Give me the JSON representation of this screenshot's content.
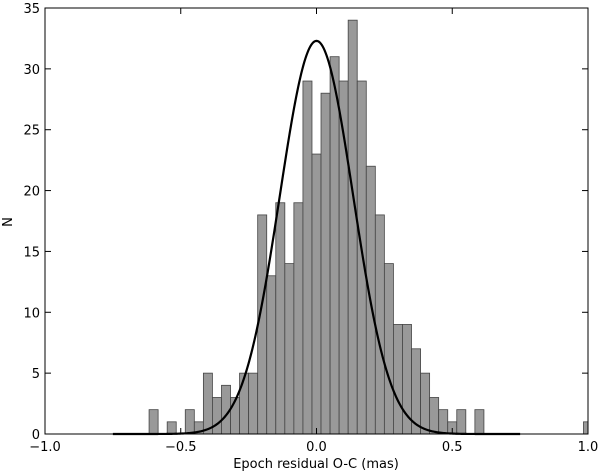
{
  "chart_data": {
    "type": "bar",
    "title": "",
    "xlabel": "Epoch residual O-C (mas)",
    "ylabel": "N",
    "xlim": [
      -1.0,
      1.0
    ],
    "ylim": [
      0,
      35
    ],
    "xticks": [
      "−1.0",
      "−0.5",
      "0.0",
      "0.5",
      "1.0"
    ],
    "xtick_values": [
      -1.0,
      -0.5,
      0.0,
      0.5,
      1.0
    ],
    "yticks": [
      "0",
      "5",
      "10",
      "15",
      "20",
      "25",
      "30",
      "35"
    ],
    "ytick_values": [
      0,
      5,
      10,
      15,
      20,
      25,
      30,
      35
    ],
    "grid": false,
    "bar_color": "#999999",
    "bar_edge_color": "#444444",
    "histogram": {
      "bin_width": 0.0333,
      "bins": [
        {
          "x": -0.6,
          "count": 2
        },
        {
          "x": -0.5333,
          "count": 1
        },
        {
          "x": -0.4667,
          "count": 2
        },
        {
          "x": -0.4333,
          "count": 1
        },
        {
          "x": -0.4,
          "count": 5
        },
        {
          "x": -0.3667,
          "count": 3
        },
        {
          "x": -0.3333,
          "count": 4
        },
        {
          "x": -0.3,
          "count": 3
        },
        {
          "x": -0.2667,
          "count": 5
        },
        {
          "x": -0.2333,
          "count": 5
        },
        {
          "x": -0.2,
          "count": 18
        },
        {
          "x": -0.1667,
          "count": 13
        },
        {
          "x": -0.1333,
          "count": 19
        },
        {
          "x": -0.1,
          "count": 14
        },
        {
          "x": -0.0667,
          "count": 19
        },
        {
          "x": -0.0333,
          "count": 29
        },
        {
          "x": 0.0,
          "count": 23
        },
        {
          "x": 0.0333,
          "count": 28
        },
        {
          "x": 0.0667,
          "count": 31
        },
        {
          "x": 0.1,
          "count": 29
        },
        {
          "x": 0.1333,
          "count": 34
        },
        {
          "x": 0.1667,
          "count": 29
        },
        {
          "x": 0.2,
          "count": 22
        },
        {
          "x": 0.2333,
          "count": 18
        },
        {
          "x": 0.2667,
          "count": 14
        },
        {
          "x": 0.3,
          "count": 9
        },
        {
          "x": 0.3333,
          "count": 9
        },
        {
          "x": 0.3667,
          "count": 7
        },
        {
          "x": 0.4,
          "count": 5
        },
        {
          "x": 0.4333,
          "count": 3
        },
        {
          "x": 0.4667,
          "count": 2
        },
        {
          "x": 0.5,
          "count": 1
        },
        {
          "x": 0.5333,
          "count": 2
        },
        {
          "x": 0.6,
          "count": 2
        },
        {
          "x": 1.0,
          "count": 1
        }
      ]
    },
    "curve": {
      "type": "gaussian",
      "peak": 32.3,
      "mean": 0.0,
      "sigma": 0.135,
      "color": "#000000"
    }
  }
}
